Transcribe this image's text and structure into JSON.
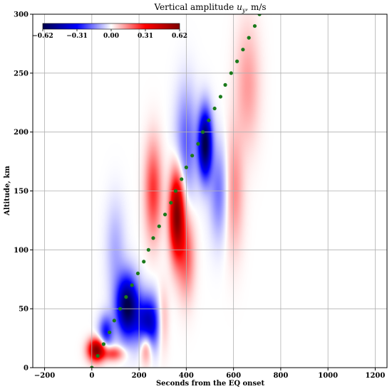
{
  "chart_data": {
    "type": "heatmap",
    "title_main": "Vertical amplitude ",
    "title_symbol": "u",
    "title_subscript": "y",
    "title_units": ", m/s",
    "xlabel": "Seconds from the EQ onset",
    "ylabel": "Altitude, km",
    "xlim": [
      -250,
      1250
    ],
    "ylim": [
      0,
      300
    ],
    "xticks": [
      -200,
      0,
      200,
      400,
      600,
      800,
      1000,
      1200
    ],
    "yticks": [
      0,
      50,
      100,
      150,
      200,
      250,
      300
    ],
    "grid": true,
    "colorbar": {
      "colormap": "seismic",
      "range": [
        -0.62,
        0.62
      ],
      "ticks": [
        -0.62,
        -0.31,
        0.0,
        0.31,
        0.62
      ],
      "tick_labels": [
        "−0.62",
        "−0.31",
        "0.00",
        "0.31",
        "0.62"
      ],
      "placement": "top-left"
    },
    "colors": {
      "negative": "#00004c",
      "mid_neg": "#0000ff",
      "zero": "#ffffff",
      "mid_pos": "#ff0000",
      "positive": "#800000",
      "dots": "#1b7a1b"
    },
    "amplitude_blobs": [
      {
        "t": 20,
        "z": 15,
        "value": 0.62,
        "dt": 35,
        "dz": 9
      },
      {
        "t": 90,
        "z": 12,
        "value": 0.25,
        "dt": 45,
        "dz": 6
      },
      {
        "t": 230,
        "z": 18,
        "value": 0.25,
        "dt": 25,
        "dz": 14
      },
      {
        "t": 60,
        "z": 30,
        "value": -0.3,
        "dt": 30,
        "dz": 14
      },
      {
        "t": 150,
        "z": 52,
        "value": -0.62,
        "dt": 45,
        "dz": 25
      },
      {
        "t": 240,
        "z": 38,
        "value": -0.45,
        "dt": 50,
        "dz": 22
      },
      {
        "t": 300,
        "z": 40,
        "value": 0.15,
        "dt": 25,
        "dz": 25
      },
      {
        "t": 360,
        "z": 130,
        "value": 0.62,
        "dt": 30,
        "dz": 35
      },
      {
        "t": 260,
        "z": 150,
        "value": 0.25,
        "dt": 35,
        "dz": 40
      },
      {
        "t": 400,
        "z": 95,
        "value": 0.2,
        "dt": 35,
        "dz": 35
      },
      {
        "t": 480,
        "z": 190,
        "value": -0.62,
        "dt": 28,
        "dz": 28
      },
      {
        "t": 400,
        "z": 190,
        "value": -0.2,
        "dt": 45,
        "dz": 45
      },
      {
        "t": 540,
        "z": 150,
        "value": -0.18,
        "dt": 40,
        "dz": 40
      },
      {
        "t": 600,
        "z": 150,
        "value": 0.15,
        "dt": 40,
        "dz": 50
      },
      {
        "t": 660,
        "z": 240,
        "value": 0.12,
        "dt": 50,
        "dz": 50
      },
      {
        "t": 100,
        "z": 100,
        "value": -0.1,
        "dt": 40,
        "dz": 40
      }
    ],
    "wavefront_dots": {
      "name": "",
      "t": [
        0,
        25,
        50,
        75,
        95,
        120,
        145,
        170,
        195,
        220,
        240,
        260,
        285,
        310,
        335,
        355,
        380,
        400,
        425,
        450,
        470,
        495,
        520,
        545,
        565,
        590,
        615,
        640,
        665,
        690,
        710
      ],
      "z": [
        0,
        10,
        20,
        30,
        40,
        50,
        60,
        70,
        80,
        90,
        100,
        110,
        120,
        130,
        140,
        150,
        160,
        170,
        180,
        190,
        200,
        210,
        220,
        230,
        240,
        250,
        260,
        270,
        280,
        290,
        300
      ]
    }
  }
}
